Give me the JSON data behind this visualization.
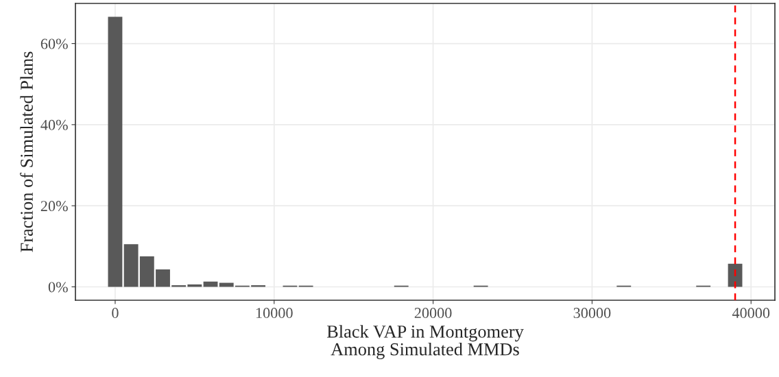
{
  "chart_data": {
    "type": "histogram",
    "xlabel": "Black VAP in Montgomery\nAmong Simulated MMDs",
    "ylabel": "Fraction of Simulated Plans",
    "bins": [
      -500,
      500,
      1500,
      2500,
      3500,
      4500,
      5500,
      6500,
      7500,
      8500,
      9500,
      10500,
      11500,
      12500,
      13500,
      14500,
      15500,
      16500,
      17500,
      18500,
      19500,
      20500,
      21500,
      22500,
      23500,
      24500,
      25500,
      26500,
      27500,
      28500,
      29500,
      30500,
      31500,
      32500,
      33500,
      34500,
      35500,
      36500,
      37500,
      38500,
      39500
    ],
    "values": [
      66.6,
      10.5,
      7.5,
      4.3,
      0.4,
      0.6,
      1.3,
      1.0,
      0.3,
      0.4,
      0,
      0.3,
      0.3,
      0,
      0,
      0,
      0,
      0,
      0.3,
      0,
      0,
      0,
      0,
      0.3,
      0,
      0,
      0,
      0,
      0,
      0,
      0,
      0,
      0.3,
      0,
      0,
      0,
      0,
      0.3,
      0,
      5.7
    ],
    "color": "#595959",
    "xlim": [
      -2500,
      41500
    ],
    "xticks": [
      0,
      10000,
      20000,
      30000,
      40000
    ],
    "ylim": [
      -3.3,
      69.9
    ],
    "yticks": [
      {
        "value": 0,
        "label": "0%"
      },
      {
        "value": 20,
        "label": "20%"
      },
      {
        "value": 40,
        "label": "40%"
      },
      {
        "value": 60,
        "label": "60%"
      }
    ],
    "ref_lines": [
      {
        "axis": "x",
        "value": 39000,
        "color": "#ff0000",
        "line_style": "dashed"
      }
    ],
    "grid": true
  }
}
